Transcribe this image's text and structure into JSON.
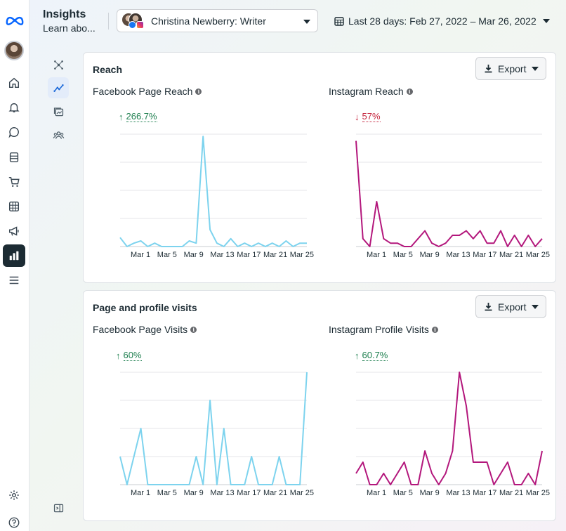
{
  "header": {
    "title": "Insights",
    "subtitle": "Learn abo...",
    "account_label": "Christina Newberry: Writer",
    "date_range": "Last 28 days: Feb 27, 2022 – Mar 26, 2022"
  },
  "left_rail": {
    "icons": [
      "meta-logo-icon",
      "avatar",
      "home-icon",
      "bell-icon",
      "chat-icon",
      "pages-icon",
      "cart-icon",
      "table-icon",
      "megaphone-icon",
      "insights-icon",
      "menu-icon",
      "settings-icon",
      "help-icon"
    ],
    "active": "insights-icon"
  },
  "sub_rail": {
    "icons": [
      "network-icon",
      "trend-icon",
      "content-icon",
      "audience-icon",
      "collapse-panel-icon"
    ],
    "active": "trend-icon"
  },
  "colors": {
    "facebook_series": "#7dd3ee",
    "instagram_series": "#b3177c",
    "up": "#1e7f4f",
    "down": "#c4213a",
    "active_rail": "#1c2b33"
  },
  "cards": [
    {
      "title": "Reach",
      "export_label": "Export",
      "metrics": [
        {
          "label": "Facebook Page Reach",
          "delta": "266.7%",
          "direction": "up"
        },
        {
          "label": "Instagram Reach",
          "delta": "57%",
          "direction": "down"
        }
      ]
    },
    {
      "title": "Page and profile visits",
      "export_label": "Export",
      "metrics": [
        {
          "label": "Facebook Page Visits",
          "delta": "60%",
          "direction": "up"
        },
        {
          "label": "Instagram Profile Visits",
          "delta": "60.7%",
          "direction": "up"
        }
      ]
    }
  ],
  "chart_data": [
    {
      "type": "line",
      "series": [
        {
          "name": "Facebook Page Reach",
          "color": "#7dd3ee",
          "values": [
            8,
            0,
            3,
            5,
            0,
            3,
            0,
            0,
            0,
            0,
            5,
            3,
            98,
            15,
            3,
            0,
            7,
            0,
            3,
            0,
            3,
            0,
            3,
            0,
            5,
            0,
            3,
            3
          ]
        }
      ],
      "x_tick_labels": [
        "Mar 1",
        "Mar 5",
        "Mar 9",
        "Mar 13",
        "Mar 17",
        "Mar 21",
        "Mar 25"
      ],
      "ylim": [
        0,
        100
      ],
      "grid": true
    },
    {
      "type": "line",
      "series": [
        {
          "name": "Instagram Reach",
          "color": "#b3177c",
          "values": [
            94,
            7,
            0,
            40,
            7,
            3,
            3,
            0,
            0,
            7,
            14,
            3,
            0,
            3,
            10,
            10,
            14,
            7,
            14,
            3,
            3,
            14,
            0,
            10,
            0,
            10,
            0,
            7
          ]
        }
      ],
      "x_tick_labels": [
        "Mar 1",
        "Mar 5",
        "Mar 9",
        "Mar 13",
        "Mar 17",
        "Mar 21",
        "Mar 25"
      ],
      "ylim": [
        0,
        100
      ],
      "grid": true
    },
    {
      "type": "line",
      "series": [
        {
          "name": "Facebook Page Visits",
          "color": "#7dd3ee",
          "values": [
            25,
            0,
            25,
            50,
            0,
            0,
            0,
            0,
            0,
            0,
            0,
            25,
            0,
            75,
            0,
            50,
            0,
            0,
            0,
            25,
            0,
            0,
            0,
            25,
            0,
            0,
            0,
            100
          ]
        }
      ],
      "x_tick_labels": [
        "Mar 1",
        "Mar 5",
        "Mar 9",
        "Mar 13",
        "Mar 17",
        "Mar 21",
        "Mar 25"
      ],
      "ylim": [
        0,
        100
      ],
      "grid": true
    },
    {
      "type": "line",
      "series": [
        {
          "name": "Instagram Profile Visits",
          "color": "#b3177c",
          "values": [
            10,
            20,
            0,
            0,
            10,
            0,
            10,
            20,
            0,
            0,
            30,
            10,
            0,
            10,
            30,
            100,
            70,
            20,
            20,
            20,
            0,
            10,
            20,
            0,
            0,
            10,
            0,
            30
          ]
        }
      ],
      "x_tick_labels": [
        "Mar 1",
        "Mar 5",
        "Mar 9",
        "Mar 13",
        "Mar 17",
        "Mar 21",
        "Mar 25"
      ],
      "ylim": [
        0,
        100
      ],
      "grid": true
    }
  ]
}
